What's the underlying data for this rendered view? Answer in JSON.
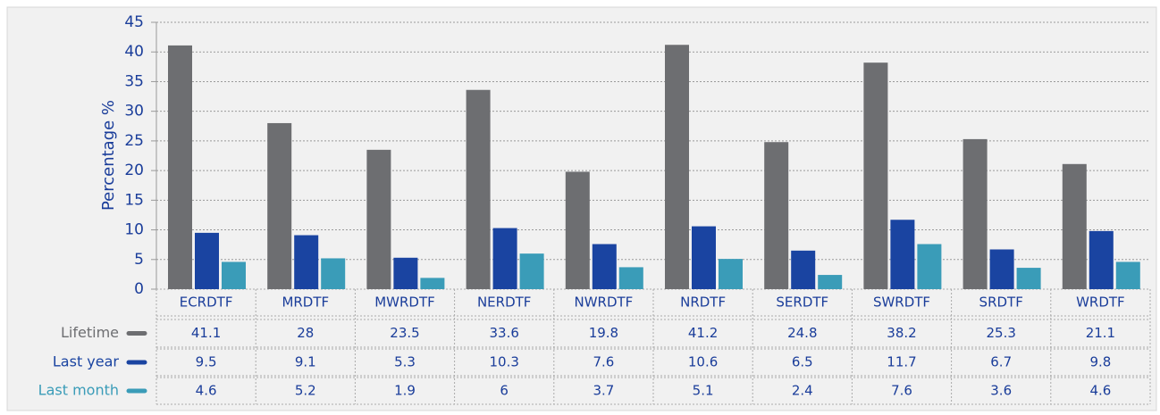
{
  "chart_data": {
    "type": "bar",
    "y_label": "Percentage %",
    "categories": [
      "ECRDTF",
      "MRDTF",
      "MWRDTF",
      "NERDTF",
      "NWRDTF",
      "NRDTF",
      "SERDTF",
      "SWRDTF",
      "SRDTF",
      "WRDTF"
    ],
    "series": [
      {
        "name": "Lifetime",
        "color": "#6d6e71",
        "values": [
          41.1,
          28,
          23.5,
          33.6,
          19.8,
          41.2,
          24.8,
          38.2,
          25.3,
          21.1
        ]
      },
      {
        "name": "Last year",
        "color": "#1a44a1",
        "values": [
          9.5,
          9.1,
          5.3,
          10.3,
          7.6,
          10.6,
          6.5,
          11.7,
          6.7,
          9.8
        ]
      },
      {
        "name": "Last month",
        "color": "#3a9cb8",
        "values": [
          4.6,
          5.2,
          1.9,
          6,
          3.7,
          5.1,
          2.4,
          7.6,
          3.6,
          4.6
        ]
      }
    ],
    "ylim": [
      0,
      45
    ],
    "yticks": [
      0,
      5,
      10,
      15,
      20,
      25,
      30,
      35,
      40,
      45
    ],
    "grid": true
  }
}
